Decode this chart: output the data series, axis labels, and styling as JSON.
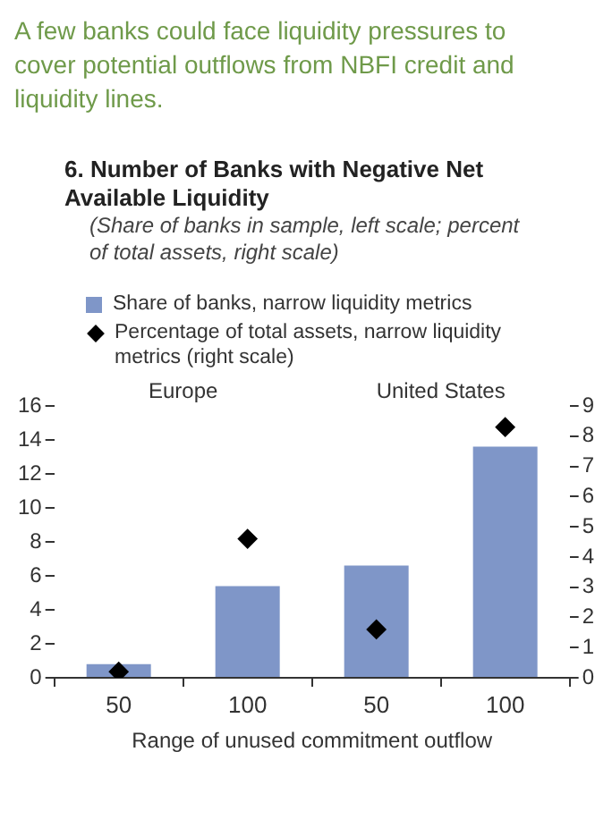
{
  "chart_data": {
    "type": "bar",
    "title": "6. Number of Banks with Negative Net Available Liquidity",
    "subtitle": "(Share of banks in sample, left scale; percent of total assets, right scale)",
    "annotations": [
      "A few banks could face liquidity pressures to cover potential outflows from NBFI credit and liquidity lines.",
      "Europe",
      "United States"
    ],
    "xlabel": "Range of unused commitment outflow",
    "categories": [
      "50",
      "100",
      "50",
      "100"
    ],
    "series": [
      {
        "name": "Share of banks, narrow liquidity metrics",
        "color": "#7f96c8",
        "values": [
          0.8,
          5.4,
          6.6,
          13.6
        ]
      },
      {
        "name": "Percentage of total assets, narrow liquidity metrics (right scale)",
        "type": "scatter",
        "axis": "y2",
        "color": "#000000",
        "marker": "diamond",
        "values": [
          0.2,
          4.6,
          1.6,
          8.3
        ]
      }
    ],
    "ylim": [
      0,
      16
    ],
    "yticks": [
      0,
      2,
      4,
      6,
      8,
      10,
      12,
      14,
      16
    ],
    "y2lim": [
      0,
      9
    ],
    "y2ticks": [
      0,
      1,
      2,
      3,
      4,
      5,
      6,
      7,
      8,
      9
    ],
    "grid": false,
    "legend": "top"
  }
}
